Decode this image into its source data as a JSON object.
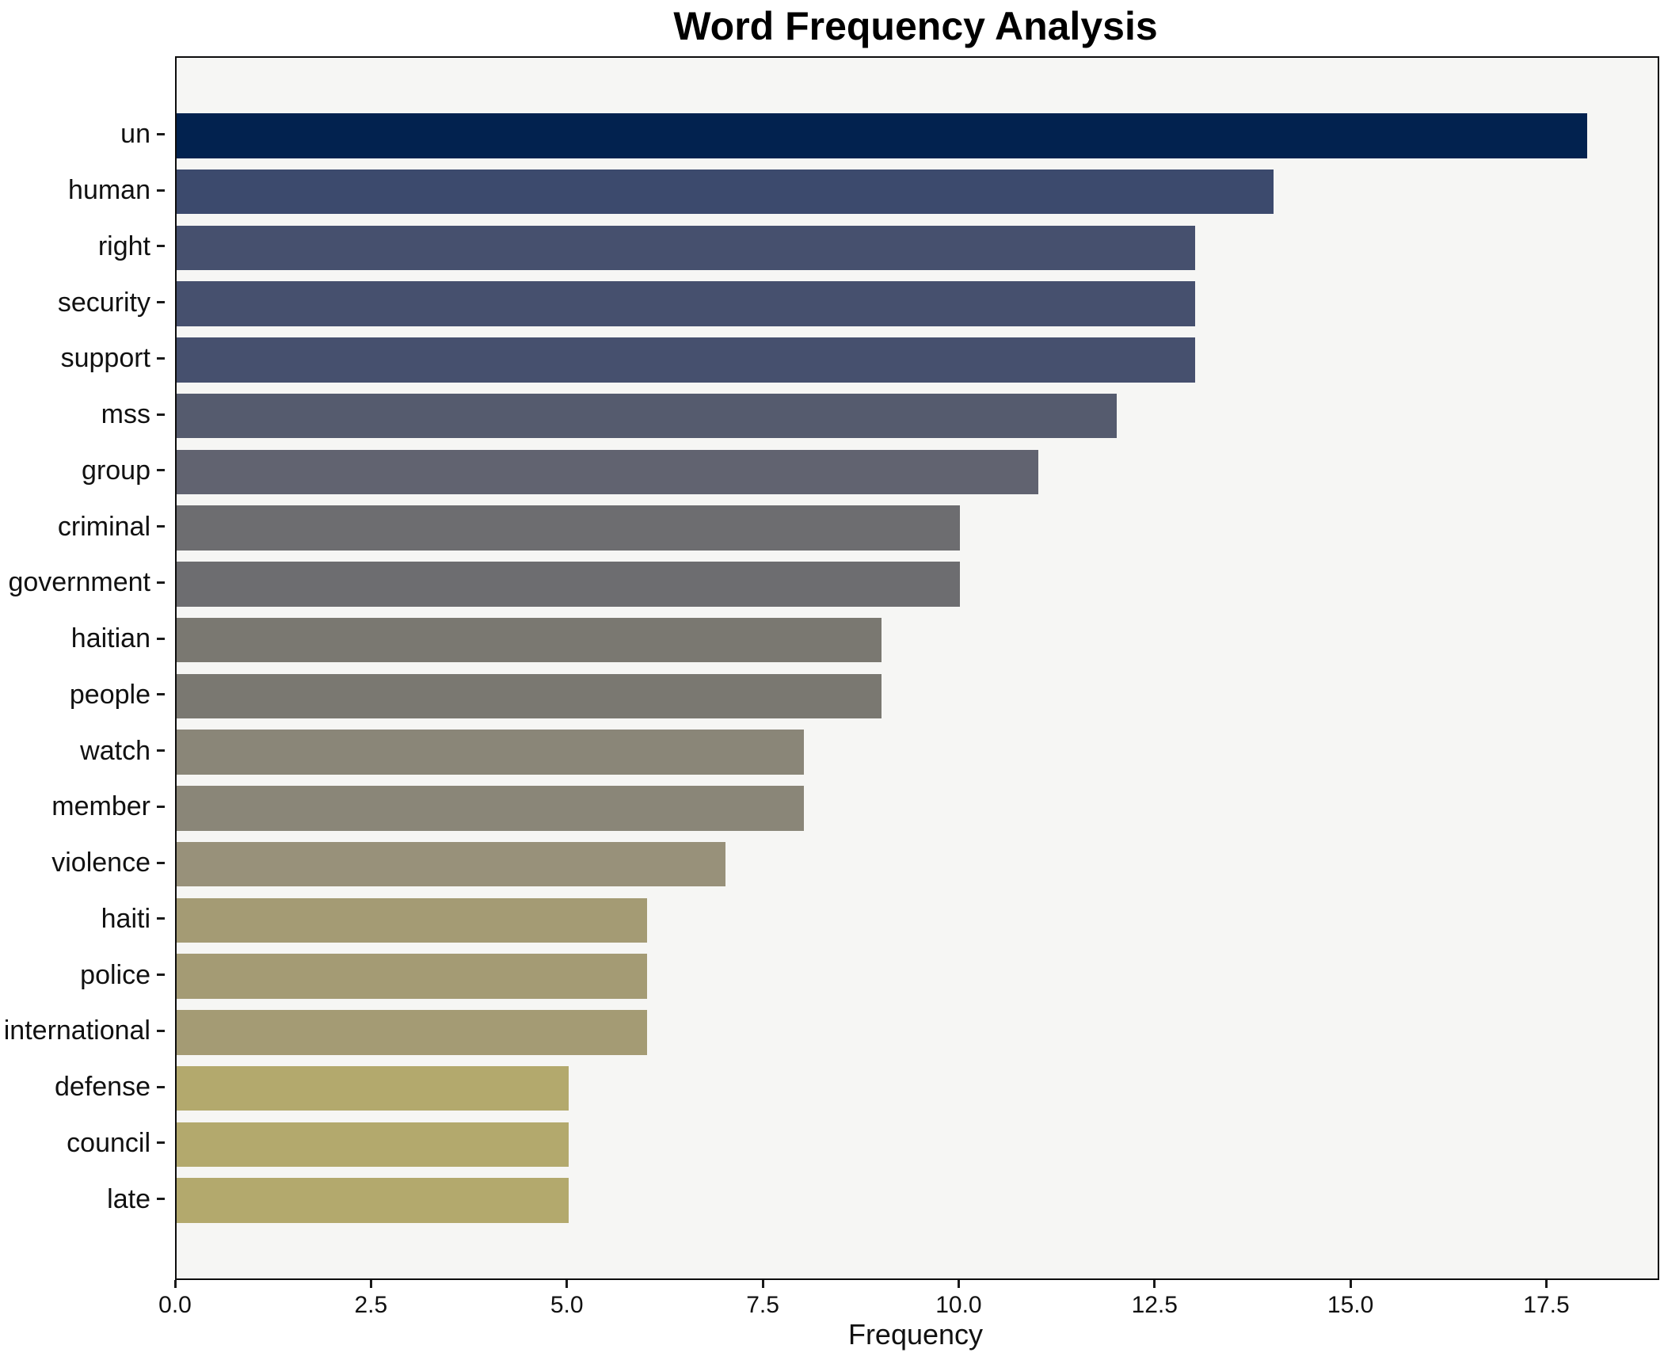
{
  "title": "Word Frequency Analysis",
  "axes": {
    "xlabel": "Frequency",
    "x_tick_labels": [
      "0.0",
      "2.5",
      "5.0",
      "7.5",
      "10.0",
      "12.5",
      "15.0",
      "17.5"
    ],
    "x_tick_values": [
      0,
      2.5,
      5,
      7.5,
      10,
      12.5,
      15,
      17.5
    ]
  },
  "style": {
    "plot_background": "#f6f6f4",
    "figure_background": "#ffffff",
    "spine_color": "#0d0d0d",
    "text_color": "#111111",
    "colormap": "cividis"
  },
  "chart_data": {
    "type": "bar",
    "orientation": "horizontal",
    "title": "Word Frequency Analysis",
    "xlabel": "Frequency",
    "ylabel": "",
    "xlim": [
      0,
      18.9
    ],
    "grid": false,
    "legend": false,
    "categories": [
      "un",
      "human",
      "right",
      "security",
      "support",
      "mss",
      "group",
      "criminal",
      "government",
      "haitian",
      "people",
      "watch",
      "member",
      "violence",
      "haiti",
      "police",
      "international",
      "defense",
      "council",
      "late"
    ],
    "values": [
      18,
      14,
      13,
      13,
      13,
      12,
      11,
      10,
      10,
      9,
      9,
      8,
      8,
      7,
      6,
      6,
      6,
      5,
      5,
      5
    ],
    "bar_colors": [
      "#02224f",
      "#3c4a6d",
      "#46506e",
      "#46506e",
      "#46506e",
      "#555b6e",
      "#616370",
      "#6d6d70",
      "#6d6d70",
      "#7a7871",
      "#7a7871",
      "#8a8678",
      "#8a8678",
      "#98917a",
      "#a49b74",
      "#a49b74",
      "#a49b74",
      "#b3a96d",
      "#b3a96d",
      "#b3a96d"
    ],
    "bar_height_fraction": 0.8,
    "y_margin_units": 0.89
  }
}
